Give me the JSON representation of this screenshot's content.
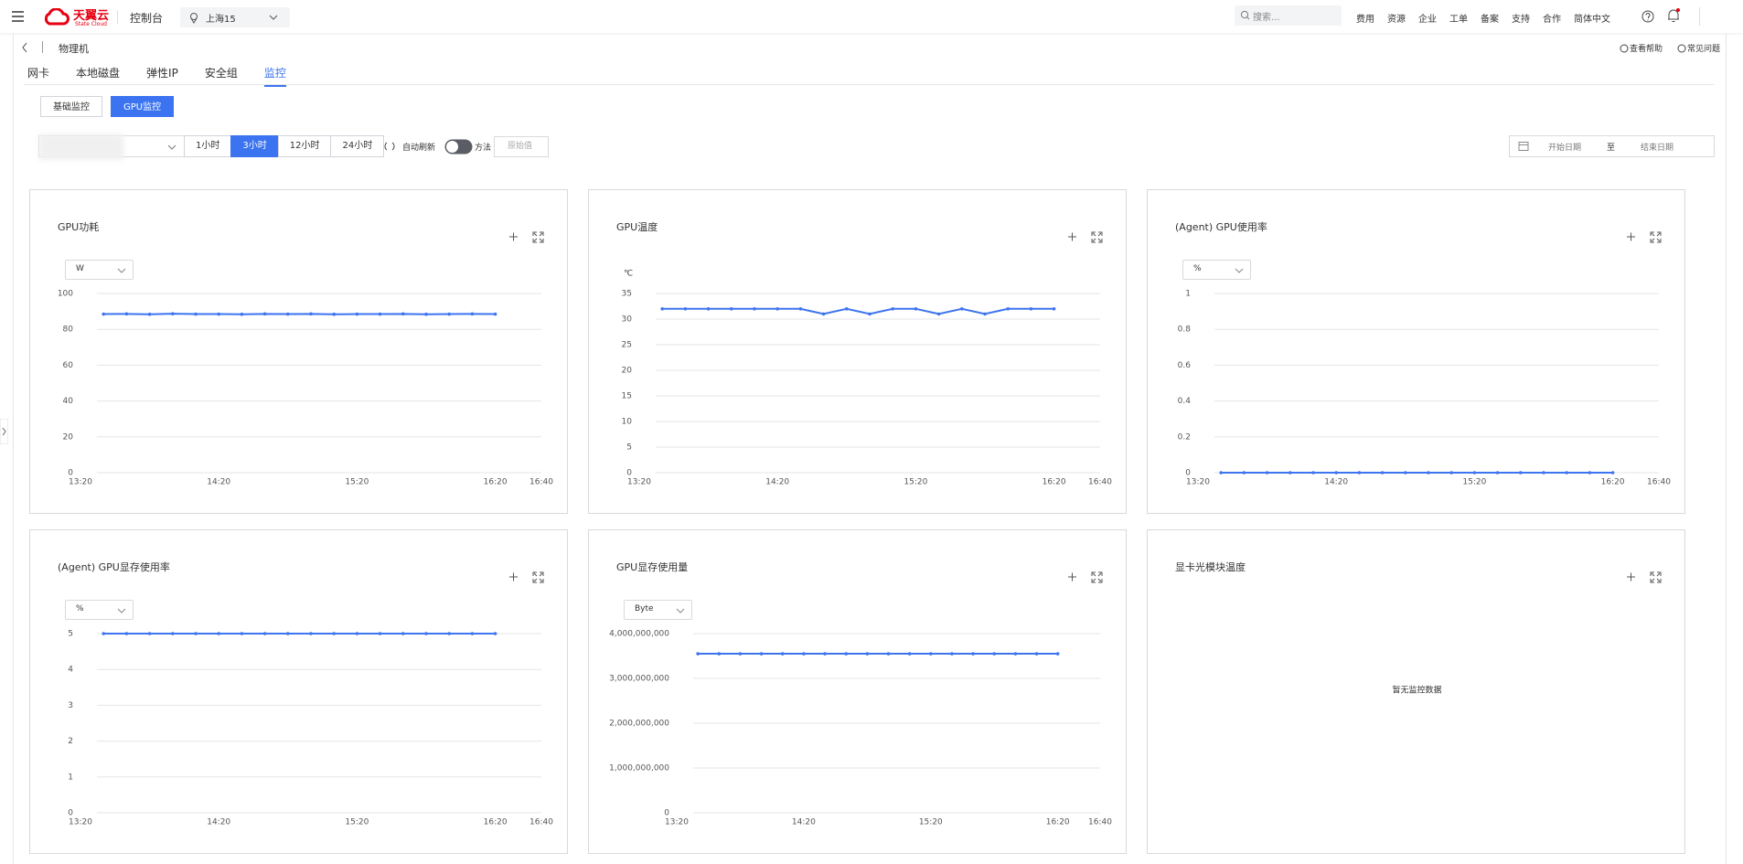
{
  "header": {
    "logo": "天翼云",
    "logo_sub": "State Cloud",
    "console": "控制台",
    "region": "上海15",
    "search_placeholder": "搜索...",
    "nav": [
      "费用",
      "资源",
      "企业",
      "工单",
      "备案",
      "支持",
      "合作",
      "简体中文"
    ]
  },
  "subheader": {
    "title": "物理机",
    "links": [
      "查看帮助",
      "常见问题"
    ]
  },
  "tabs": {
    "items": [
      "网卡",
      "本地磁盘",
      "弹性IP",
      "安全组",
      "监控"
    ],
    "active": 4
  },
  "subtabs": {
    "items": [
      "基础监控",
      "GPU监控"
    ],
    "active": 1
  },
  "toolbar": {
    "ranges": [
      "1小时",
      "3小时",
      "12小时",
      "24小时"
    ],
    "active_range": 1,
    "auto_refresh": "自动刷新",
    "method": "方法",
    "method_placeholder": "原始值",
    "start_date": "开始日期",
    "range_sep": "至",
    "end_date": "结束日期"
  },
  "chart_data": [
    {
      "type": "line",
      "title": "GPU功耗",
      "unit": "W",
      "unit_style": "select",
      "color": "#3e74ef",
      "grid": true,
      "x": [
        "13:30",
        "13:40",
        "13:50",
        "14:00",
        "14:10",
        "14:20",
        "14:30",
        "14:40",
        "14:50",
        "15:00",
        "15:10",
        "15:20",
        "15:30",
        "15:40",
        "15:50",
        "16:00",
        "16:10",
        "16:20"
      ],
      "values": [
        88.5,
        88.6,
        88.4,
        88.7,
        88.5,
        88.5,
        88.4,
        88.6,
        88.5,
        88.6,
        88.4,
        88.5,
        88.5,
        88.6,
        88.4,
        88.5,
        88.6,
        88.5
      ],
      "xlim": [
        "13:20",
        "16:40"
      ],
      "xticks": [
        "13:20",
        "14:20",
        "15:20",
        "16:20",
        "16:40"
      ],
      "ylim": [
        0,
        100
      ],
      "yticks": [
        0,
        20,
        40,
        60,
        80,
        100
      ]
    },
    {
      "type": "line",
      "title": "GPU温度",
      "unit": "℃",
      "unit_style": "label",
      "color": "#3e74ef",
      "grid": true,
      "x": [
        "13:30",
        "13:40",
        "13:50",
        "14:00",
        "14:10",
        "14:20",
        "14:30",
        "14:40",
        "14:50",
        "15:00",
        "15:10",
        "15:20",
        "15:30",
        "15:40",
        "15:50",
        "16:00",
        "16:10",
        "16:20"
      ],
      "values": [
        32,
        32,
        32,
        32,
        32,
        32,
        32,
        31,
        32,
        31,
        32,
        32,
        31,
        32,
        31,
        32,
        32,
        32
      ],
      "xlim": [
        "13:20",
        "16:40"
      ],
      "xticks": [
        "13:20",
        "14:20",
        "15:20",
        "16:20",
        "16:40"
      ],
      "ylim": [
        0,
        35
      ],
      "yticks": [
        0,
        5,
        10,
        15,
        20,
        25,
        30,
        35
      ]
    },
    {
      "type": "line",
      "title": "(Agent) GPU使用率",
      "unit": "%",
      "unit_style": "select",
      "color": "#3e74ef",
      "grid": true,
      "x": [
        "13:30",
        "13:40",
        "13:50",
        "14:00",
        "14:10",
        "14:20",
        "14:30",
        "14:40",
        "14:50",
        "15:00",
        "15:10",
        "15:20",
        "15:30",
        "15:40",
        "15:50",
        "16:00",
        "16:10",
        "16:20"
      ],
      "values": [
        0,
        0,
        0,
        0,
        0,
        0,
        0,
        0,
        0,
        0,
        0,
        0,
        0,
        0,
        0,
        0,
        0,
        0
      ],
      "xlim": [
        "13:20",
        "16:40"
      ],
      "xticks": [
        "13:20",
        "14:20",
        "15:20",
        "16:20",
        "16:40"
      ],
      "ylim": [
        0,
        1
      ],
      "yticks": [
        0,
        0.2,
        0.4,
        0.6,
        0.8,
        1
      ]
    },
    {
      "type": "line",
      "title": "(Agent) GPU显存使用率",
      "unit": "%",
      "unit_style": "select",
      "color": "#3e74ef",
      "grid": true,
      "x": [
        "13:30",
        "13:40",
        "13:50",
        "14:00",
        "14:10",
        "14:20",
        "14:30",
        "14:40",
        "14:50",
        "15:00",
        "15:10",
        "15:20",
        "15:30",
        "15:40",
        "15:50",
        "16:00",
        "16:10",
        "16:20"
      ],
      "values": [
        5,
        5,
        5,
        5,
        5,
        5,
        5,
        5,
        5,
        5,
        5,
        5,
        5,
        5,
        5,
        5,
        5,
        5
      ],
      "xlim": [
        "13:20",
        "16:40"
      ],
      "xticks": [
        "13:20",
        "14:20",
        "15:20",
        "16:20",
        "16:40"
      ],
      "ylim": [
        0,
        5
      ],
      "yticks": [
        0,
        1,
        2,
        3,
        4,
        5
      ]
    },
    {
      "type": "line",
      "title": "GPU显存使用量",
      "unit": "Byte",
      "unit_style": "select",
      "color": "#3e74ef",
      "grid": true,
      "x": [
        "13:30",
        "13:40",
        "13:50",
        "14:00",
        "14:10",
        "14:20",
        "14:30",
        "14:40",
        "14:50",
        "15:00",
        "15:10",
        "15:20",
        "15:30",
        "15:40",
        "15:50",
        "16:00",
        "16:10",
        "16:20"
      ],
      "values": [
        3550000000,
        3550000000,
        3550000000,
        3550000000,
        3550000000,
        3550000000,
        3550000000,
        3550000000,
        3550000000,
        3550000000,
        3550000000,
        3550000000,
        3550000000,
        3550000000,
        3550000000,
        3550000000,
        3550000000,
        3550000000
      ],
      "xlim": [
        "13:20",
        "16:40"
      ],
      "xticks": [
        "13:20",
        "14:20",
        "15:20",
        "16:20",
        "16:40"
      ],
      "ylim": [
        0,
        4000000000
      ],
      "yticks": [
        0,
        {
          "value": 1000000000,
          "label": "1,000,000,000"
        },
        {
          "value": 2000000000,
          "label": "2,000,000,000"
        },
        {
          "value": 3000000000,
          "label": "3,000,000,000"
        },
        {
          "value": 4000000000,
          "label": "4,000,000,000"
        }
      ]
    },
    {
      "type": "line",
      "title": "显卡光模块温度",
      "annotation": "暂无监控数据"
    }
  ]
}
